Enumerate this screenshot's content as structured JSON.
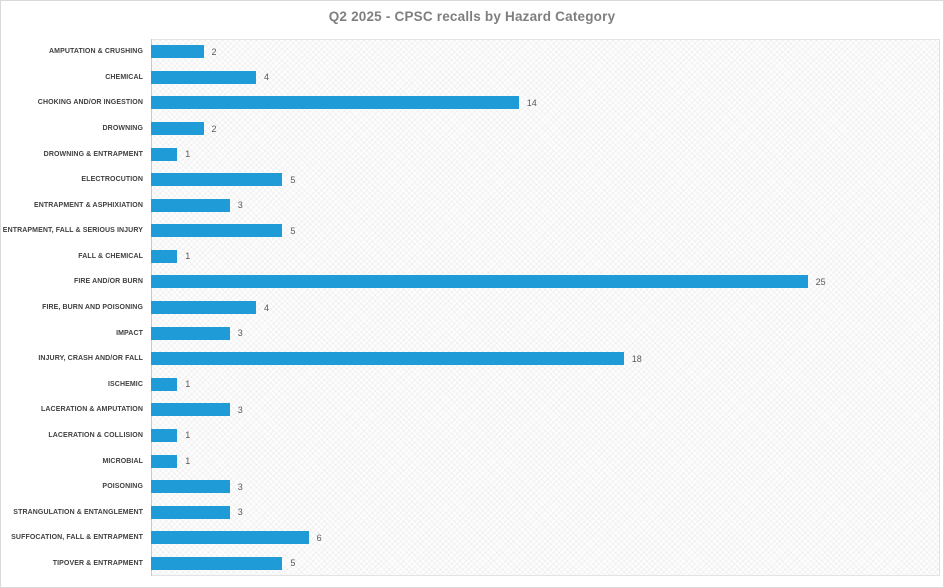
{
  "chart_data": {
    "type": "bar",
    "orientation": "horizontal",
    "title": "Q2 2025 - CPSC recalls by Hazard Category",
    "categories": [
      "AMPUTATION & CRUSHING",
      "CHEMICAL",
      "CHOKING AND/OR INGESTION",
      "DROWNING",
      "DROWNING & ENTRAPMENT",
      "ELECTROCUTION",
      "ENTRAPMENT & ASPHIXIATION",
      "ENTRAPMENT, FALL & SERIOUS INJURY",
      "FALL & CHEMICAL",
      "FIRE AND/OR BURN",
      "FIRE, BURN AND POISONING",
      "IMPACT",
      "INJURY, CRASH AND/OR FALL",
      "ISCHEMIC",
      "LACERATION & AMPUTATION",
      "LACERATION & COLLISION",
      "MICROBIAL",
      "POISONING",
      "STRANGULATION & ENTANGLEMENT",
      "SUFFOCATION, FALL & ENTRAPMENT",
      "TIPOVER & ENTRAPMENT"
    ],
    "values": [
      2,
      4,
      14,
      2,
      1,
      5,
      3,
      5,
      1,
      25,
      4,
      3,
      18,
      1,
      3,
      1,
      1,
      3,
      3,
      6,
      5
    ],
    "xlim": [
      0,
      30
    ],
    "xlabel": "",
    "ylabel": "",
    "legend_position": "none",
    "grid": "off",
    "data_labels": "on",
    "bar_color": "#1f9cd8",
    "title_color": "#7f7f7f",
    "category_label_color": "#3f3f3f",
    "value_label_color": "#595959"
  }
}
